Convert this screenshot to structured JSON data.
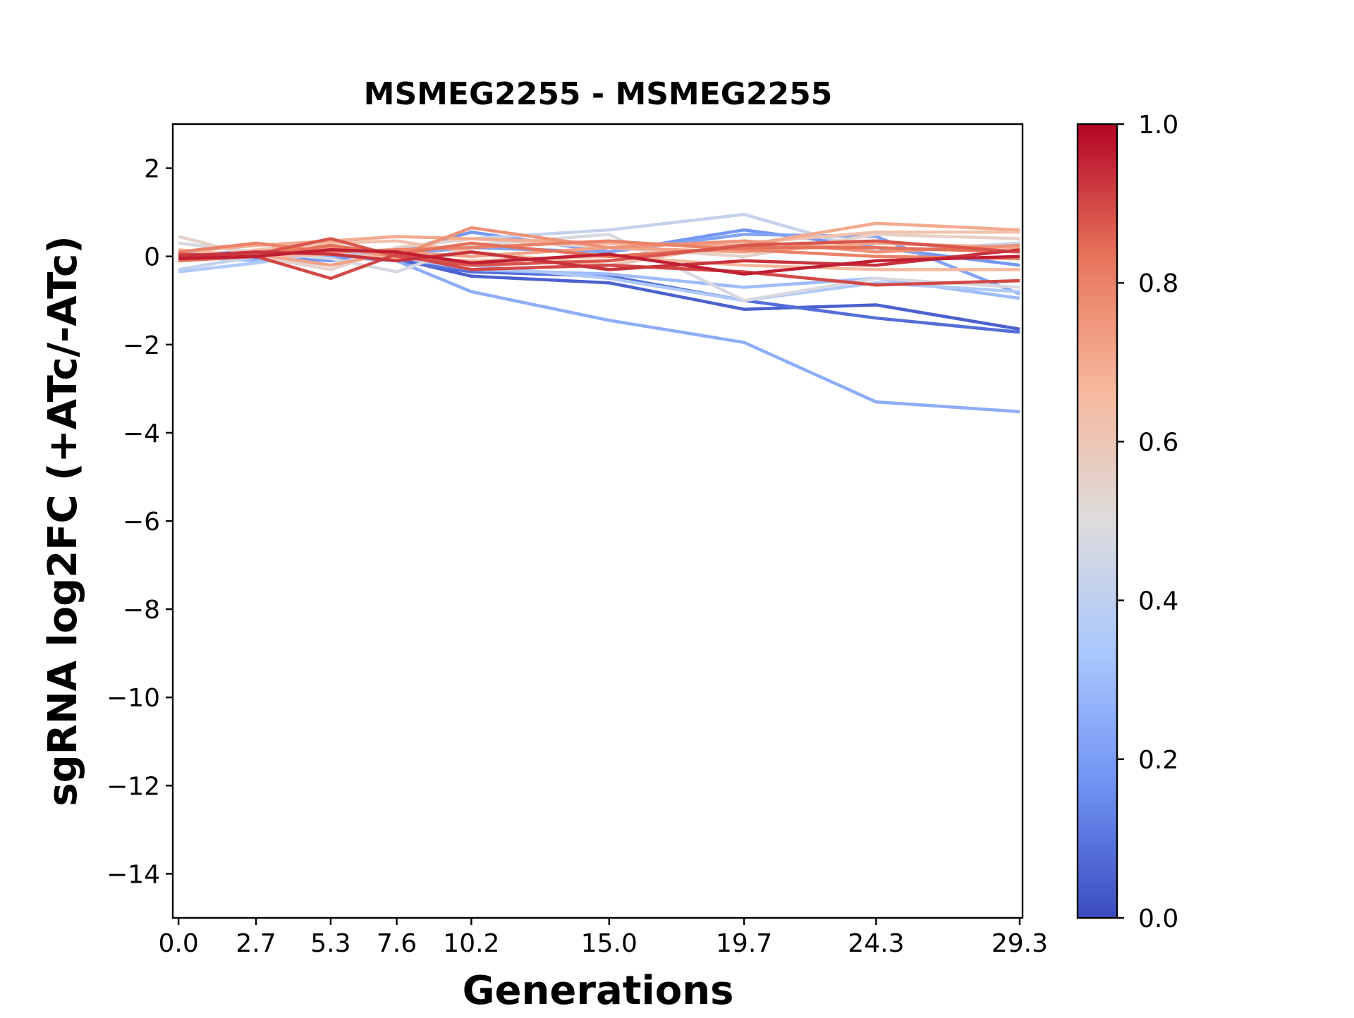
{
  "chart_data": {
    "type": "line",
    "title": "MSMEG2255 - MSMEG2255",
    "xlabel": "Generations",
    "ylabel": "sgRNA log2FC (+ATc/-ATc)",
    "x": [
      0.0,
      2.7,
      5.3,
      7.6,
      10.2,
      15.0,
      19.7,
      24.3,
      29.3
    ],
    "x_tick_labels": [
      "0.0",
      "2.7",
      "5.3",
      "7.6",
      "10.2",
      "15.0",
      "19.7",
      "24.3",
      "29.3"
    ],
    "xlim": [
      -0.2,
      29.4
    ],
    "ylim": [
      -15,
      3
    ],
    "y_ticks": [
      2,
      0,
      -2,
      -4,
      -6,
      -8,
      -10,
      -12,
      -14
    ],
    "y_tick_labels": [
      "2",
      "0",
      "−2",
      "−4",
      "−6",
      "−8",
      "−10",
      "−12",
      "−14"
    ],
    "colorbar": {
      "colormap": "coolwarm",
      "range": [
        0.0,
        1.0
      ],
      "tick_values": [
        0.0,
        0.2,
        0.4,
        0.6,
        0.8,
        1.0
      ],
      "tick_labels": [
        "0.0",
        "0.2",
        "0.4",
        "0.6",
        "0.8",
        "1.0"
      ],
      "colors": [
        "#3b4cc0",
        "#6f92f3",
        "#aac7fd",
        "#dddcdc",
        "#f7b89c",
        "#e7745b",
        "#b40426"
      ]
    },
    "series": [
      {
        "color_value": 0.05,
        "values": [
          0.05,
          -0.05,
          0.1,
          -0.05,
          -0.45,
          -0.6,
          -1.2,
          -1.1,
          -1.65
        ]
      },
      {
        "color_value": 0.08,
        "values": [
          0.0,
          0.05,
          0.0,
          -0.1,
          -0.35,
          -0.45,
          -1.0,
          -1.4,
          -1.72
        ]
      },
      {
        "color_value": 0.25,
        "values": [
          -0.1,
          0.05,
          0.0,
          -0.1,
          -0.8,
          -1.45,
          -1.95,
          -3.3,
          -3.52
        ]
      },
      {
        "color_value": 0.18,
        "values": [
          -0.05,
          0.0,
          -0.1,
          0.1,
          0.55,
          0.1,
          0.6,
          0.2,
          -0.2
        ]
      },
      {
        "color_value": 0.3,
        "values": [
          0.0,
          -0.1,
          0.1,
          0.0,
          -0.3,
          -0.4,
          -0.7,
          -0.5,
          -0.95
        ]
      },
      {
        "color_value": 0.22,
        "values": [
          0.05,
          0.1,
          0.0,
          0.05,
          0.2,
          0.1,
          0.5,
          0.45,
          -0.85
        ]
      },
      {
        "color_value": 0.42,
        "values": [
          -0.3,
          0.0,
          -0.2,
          0.2,
          0.4,
          0.6,
          0.95,
          0.1,
          0.3
        ]
      },
      {
        "color_value": 0.35,
        "values": [
          -0.35,
          -0.15,
          0.1,
          0.05,
          -0.2,
          -0.5,
          -1.0,
          -0.6,
          -0.8
        ]
      },
      {
        "color_value": 0.48,
        "values": [
          0.3,
          0.1,
          -0.05,
          -0.35,
          0.25,
          0.5,
          -1.0,
          -0.5,
          -0.7
        ]
      },
      {
        "color_value": 0.55,
        "values": [
          0.45,
          0.0,
          -0.3,
          0.2,
          0.4,
          0.2,
          0.0,
          0.5,
          0.4
        ]
      },
      {
        "color_value": 0.62,
        "values": [
          -0.1,
          0.15,
          0.3,
          0.35,
          0.1,
          -0.2,
          0.3,
          0.55,
          0.55
        ]
      },
      {
        "color_value": 0.7,
        "values": [
          0.1,
          0.25,
          0.35,
          0.45,
          0.4,
          0.3,
          0.25,
          0.75,
          0.6
        ]
      },
      {
        "color_value": 0.72,
        "values": [
          -0.05,
          0.05,
          -0.2,
          0.1,
          0.0,
          0.2,
          0.1,
          0.3,
          0.2
        ]
      },
      {
        "color_value": 0.66,
        "values": [
          0.15,
          0.0,
          0.05,
          -0.05,
          -0.1,
          0.0,
          -0.2,
          -0.3,
          -0.3
        ]
      },
      {
        "color_value": 0.76,
        "values": [
          0.0,
          0.1,
          0.2,
          0.0,
          0.65,
          0.2,
          0.35,
          0.1,
          0.25
        ]
      },
      {
        "color_value": 0.8,
        "values": [
          0.1,
          0.3,
          0.1,
          0.15,
          0.2,
          0.35,
          0.15,
          0.0,
          -0.05
        ]
      },
      {
        "color_value": 0.84,
        "values": [
          -0.1,
          0.0,
          0.25,
          0.05,
          0.3,
          0.0,
          0.2,
          0.2,
          0.1
        ]
      },
      {
        "color_value": 0.88,
        "values": [
          0.0,
          0.05,
          0.4,
          0.0,
          -0.2,
          -0.1,
          0.25,
          0.35,
          0.1
        ]
      },
      {
        "color_value": 0.9,
        "values": [
          0.05,
          0.0,
          -0.5,
          0.05,
          -0.3,
          -0.2,
          -0.35,
          -0.65,
          -0.55
        ]
      },
      {
        "color_value": 0.93,
        "values": [
          0.0,
          0.1,
          0.05,
          -0.1,
          0.1,
          -0.3,
          -0.1,
          -0.2,
          0.15
        ]
      },
      {
        "color_value": 0.96,
        "values": [
          -0.05,
          0.0,
          0.15,
          0.1,
          -0.15,
          0.05,
          -0.4,
          -0.1,
          0.0
        ]
      }
    ]
  }
}
